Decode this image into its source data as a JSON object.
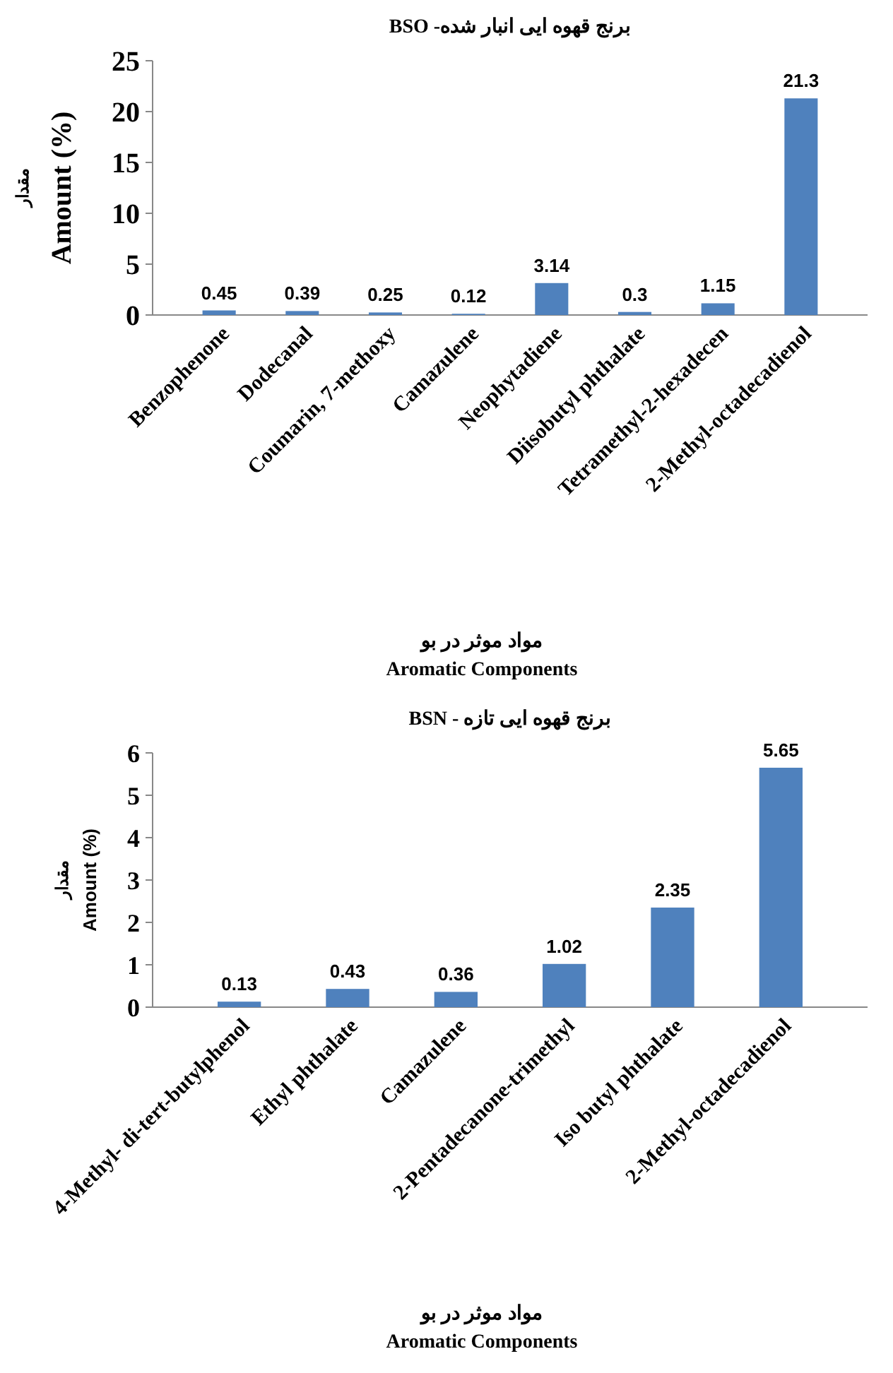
{
  "chart_data": [
    {
      "type": "bar",
      "title": "برنج قهوه ایی انبار شده- BSO",
      "ylabel": "مقدار\nAmount (%)",
      "xlabel": "مواد موثر در بو\nAromatic Components",
      "categories": [
        "Benzophenone",
        "Dodecanal",
        "Coumarin, 7-methoxy",
        "Camazulene",
        "Neophytadiene",
        "Diisobutyl phthalate",
        "Tetramethyl-2-hexadecen",
        "2-Methyl-octadecadienol"
      ],
      "values": [
        0.45,
        0.39,
        0.25,
        0.12,
        3.14,
        0.3,
        1.15,
        21.3
      ],
      "color": "#4f81bd",
      "ylim": [
        0,
        25
      ],
      "yticks": [
        0,
        5,
        10,
        15,
        20,
        25
      ],
      "data_labels": true
    },
    {
      "type": "bar",
      "title": "برنج قهوه ایی تازه - BSN",
      "ylabel": "مقدار\nAmount (%)",
      "xlabel": "مواد موثر در بو\nAromatic Components",
      "categories": [
        "4-Methyl- di-tert-butylphenol",
        "Ethyl phthalate",
        "Camazulene",
        "2-Pentadecanone-trimethyl",
        "Iso butyl phthalate",
        "2-Methyl-octadecadienol"
      ],
      "values": [
        0.13,
        0.43,
        0.36,
        1.02,
        2.35,
        5.65
      ],
      "color": "#4f81bd",
      "ylim": [
        0,
        6
      ],
      "yticks": [
        0,
        1,
        2,
        3,
        4,
        5,
        6
      ],
      "data_labels": true
    }
  ]
}
